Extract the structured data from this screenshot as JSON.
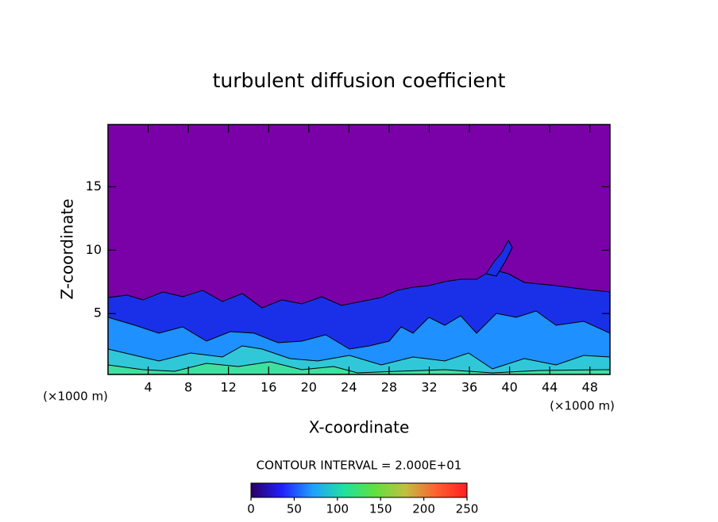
{
  "chart_data": {
    "type": "contour",
    "title": "turbulent diffusion coefficient",
    "xlabel": "X-coordinate",
    "ylabel": "Z-coordinate",
    "xunit": "(×1000 m)",
    "yunit": "(×1000 m)",
    "xlim": [
      0,
      50
    ],
    "xticks": [
      4,
      8,
      12,
      16,
      20,
      24,
      28,
      32,
      36,
      40,
      44,
      48
    ],
    "ylim": [
      0.2,
      19.9
    ],
    "yticks": [
      5,
      10,
      15
    ],
    "background": "#7a00a8",
    "contour_note": "CONTOUR INTERVAL = 2.000E+01",
    "colorbar": {
      "lim": [
        0,
        250
      ],
      "ticks": [
        0,
        50,
        100,
        150,
        200,
        250
      ],
      "colors": [
        "#2a0060",
        "#2020ff",
        "#20a0ff",
        "#20e0a0",
        "#60e040",
        "#c0c040",
        "#ff6030",
        "#ff2020"
      ]
    }
  }
}
